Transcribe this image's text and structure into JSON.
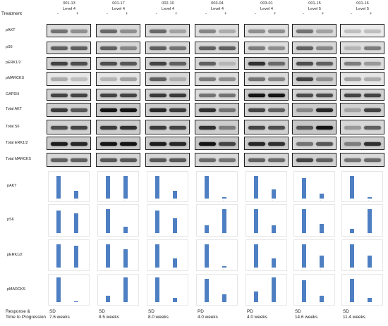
{
  "treatment_label": "Treatment",
  "signs": [
    "-",
    "+"
  ],
  "samples": [
    {
      "id": "001-13",
      "level": "Level 4",
      "response": "SD",
      "time": "7.6 weeks"
    },
    {
      "id": "001-17",
      "level": "Level 4",
      "response": "SD",
      "time": "8.5 weeks"
    },
    {
      "id": "002-10",
      "level": "Level 4",
      "response": "SD",
      "time": "8.0 weeks"
    },
    {
      "id": "003-04",
      "level": "Level 4",
      "response": "PD",
      "time": "4.0 weeks"
    },
    {
      "id": "003-01",
      "level": "Level 4",
      "response": "PD",
      "time": "4.0 weeks"
    },
    {
      "id": "001-15",
      "level": "Level 5",
      "response": "SD",
      "time": "14.6 weeks"
    },
    {
      "id": "001-16",
      "level": "Level 5",
      "response": "SD",
      "time": "11.4 weeks"
    }
  ],
  "blot_rows": [
    "pAKT",
    "pS6",
    "pERK1/2",
    "pMARCKS",
    "GAPDH",
    "Total AKT",
    "Total S6",
    "Total ERK1/2",
    "Total MARCKS"
  ],
  "blot_intensity": [
    [
      [
        0.45,
        0.3
      ],
      [
        0.5,
        0.3
      ],
      [
        0.5,
        0.2
      ],
      [
        0.35,
        0.15
      ],
      [
        0.3,
        0.3
      ],
      [
        0.45,
        0.2
      ],
      [
        0.05,
        0.05
      ]
    ],
    [
      [
        0.55,
        0.55
      ],
      [
        0.55,
        0.35
      ],
      [
        0.55,
        0.45
      ],
      [
        0.55,
        0.55
      ],
      [
        0.4,
        0.3
      ],
      [
        0.55,
        0.35
      ],
      [
        0.1,
        0.4
      ]
    ],
    [
      [
        0.7,
        0.65
      ],
      [
        0.65,
        0.6
      ],
      [
        0.7,
        0.55
      ],
      [
        0.55,
        0.1
      ],
      [
        0.8,
        0.5
      ],
      [
        0.65,
        0.55
      ],
      [
        0.4,
        0.25
      ]
    ],
    [
      [
        0.15,
        0.05
      ],
      [
        0.1,
        0.2
      ],
      [
        0.55,
        0.15
      ],
      [
        0.4,
        0.3
      ],
      [
        0.45,
        0.35
      ],
      [
        0.7,
        0.3
      ],
      [
        0.2,
        0.15
      ]
    ],
    [
      [
        0.7,
        0.7
      ],
      [
        0.7,
        0.7
      ],
      [
        0.75,
        0.75
      ],
      [
        0.45,
        0.45
      ],
      [
        0.95,
        0.95
      ],
      [
        0.65,
        0.65
      ],
      [
        0.7,
        0.7
      ]
    ],
    [
      [
        0.75,
        0.6
      ],
      [
        0.95,
        0.95
      ],
      [
        0.85,
        0.75
      ],
      [
        0.8,
        0.45
      ],
      [
        0.7,
        0.55
      ],
      [
        0.35,
        0.85
      ],
      [
        0.2,
        0.7
      ]
    ],
    [
      [
        0.65,
        0.7
      ],
      [
        0.75,
        0.8
      ],
      [
        0.75,
        0.7
      ],
      [
        0.8,
        0.4
      ],
      [
        0.7,
        0.65
      ],
      [
        0.6,
        0.95
      ],
      [
        0.25,
        0.55
      ]
    ],
    [
      [
        0.9,
        0.85
      ],
      [
        0.95,
        0.95
      ],
      [
        0.9,
        0.85
      ],
      [
        0.95,
        0.7
      ],
      [
        0.85,
        0.8
      ],
      [
        0.45,
        0.6
      ],
      [
        0.4,
        0.8
      ]
    ],
    [
      [
        0.55,
        0.55
      ],
      [
        0.6,
        0.6
      ],
      [
        0.6,
        0.6
      ],
      [
        0.5,
        0.45
      ],
      [
        0.55,
        0.5
      ],
      [
        0.7,
        0.55
      ],
      [
        0.45,
        0.5
      ]
    ]
  ],
  "chart_data": {
    "type": "bar",
    "categories": [
      "-",
      "+"
    ],
    "rows": [
      "pAKT",
      "pS6",
      "pERK1/2",
      "pMARCKS"
    ],
    "ylim": [
      0,
      1
    ],
    "values": [
      [
        [
          0.9,
          0.3
        ],
        [
          0.9,
          0.9
        ],
        [
          0.9,
          0.3
        ],
        [
          0.9,
          0.05
        ],
        [
          0.9,
          0.35
        ],
        [
          0.8,
          0.2
        ],
        [
          0.9,
          0.05
        ]
      ],
      [
        [
          0.85,
          0.75
        ],
        [
          0.9,
          0.25
        ],
        [
          0.85,
          0.55
        ],
        [
          0.3,
          0.9
        ],
        [
          0.9,
          0.3
        ],
        [
          0.9,
          0.35
        ],
        [
          0.15,
          0.9
        ]
      ],
      [
        [
          0.9,
          0.85
        ],
        [
          0.9,
          0.7
        ],
        [
          0.9,
          0.35
        ],
        [
          0.9,
          0.05
        ],
        [
          0.9,
          0.35
        ],
        [
          0.9,
          0.45
        ],
        [
          0.9,
          0.45
        ]
      ],
      [
        [
          0.95,
          0.02
        ],
        [
          0.25,
          0.95
        ],
        [
          0.95,
          0.15
        ],
        [
          0.9,
          0.3
        ],
        [
          0.4,
          0.95
        ],
        [
          0.85,
          0.25
        ],
        [
          0.9,
          0.15
        ]
      ]
    ],
    "bar_color": "#4e7fc2"
  },
  "response_label_line1": "Response &",
  "response_label_line2": "Time to Progression"
}
